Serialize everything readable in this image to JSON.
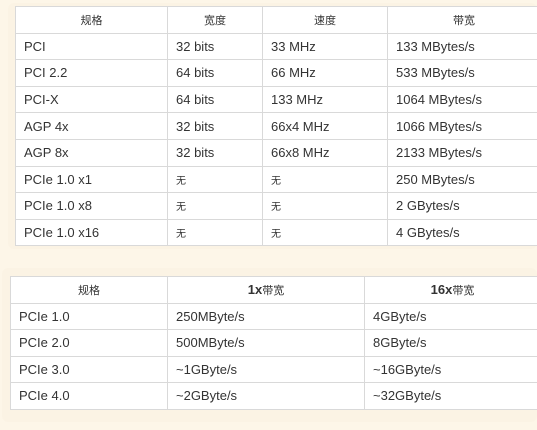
{
  "table1": {
    "headers": [
      "规格",
      "宽度",
      "速度",
      "带宽"
    ],
    "rows": [
      [
        "PCI",
        "32 bits",
        "33 MHz",
        "133 MBytes/s"
      ],
      [
        "PCI 2.2",
        "64 bits",
        "66 MHz",
        "533 MBytes/s"
      ],
      [
        "PCI-X",
        "64 bits",
        "133 MHz",
        "1064 MBytes/s"
      ],
      [
        "AGP 4x",
        "32 bits",
        "66x4 MHz",
        "1066 MBytes/s"
      ],
      [
        "AGP 8x",
        "32 bits",
        "66x8 MHz",
        "2133 MBytes/s"
      ],
      [
        "PCIe 1.0 x1",
        "无",
        "无",
        "250 MBytes/s"
      ],
      [
        "PCIe 1.0 x8",
        "无",
        "无",
        "2 GBytes/s"
      ],
      [
        "PCIe 1.0 x16",
        "无",
        "无",
        "4 GBytes/s"
      ]
    ]
  },
  "table2": {
    "header_spec": "规格",
    "header_1x_bold": "1x",
    "header_1x_rest": "带宽",
    "header_16x_bold": "16x",
    "header_16x_rest": "带宽",
    "rows": [
      [
        "PCIe 1.0",
        "250MByte/s",
        "4GByte/s"
      ],
      [
        "PCIe 2.0",
        "500MByte/s",
        "8GByte/s"
      ],
      [
        "PCIe 3.0",
        "~1GByte/s",
        "~16GByte/s"
      ],
      [
        "PCIe 4.0",
        "~2GByte/s",
        "~32GByte/s"
      ]
    ]
  }
}
